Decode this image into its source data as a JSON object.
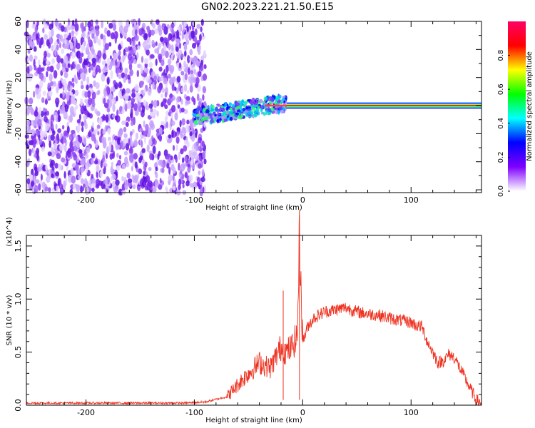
{
  "title": "GN02.2023.221.21.50.E15",
  "chart_data": [
    {
      "type": "heatmap",
      "xlabel": "Height of straight line (km)",
      "ylabel": "Frequency (Hz)",
      "xlim": [
        -255,
        165
      ],
      "ylim": [
        -62,
        60
      ],
      "x_ticks": [
        -200,
        -100,
        0,
        100
      ],
      "y_ticks": [
        -60,
        -40,
        -20,
        0,
        20,
        40,
        60
      ],
      "colorbar": {
        "label": "Normalized spectral amplitude",
        "range": [
          0.0,
          1.0
        ],
        "ticks": [
          "0.0",
          "0.2",
          "0.4",
          "0.6",
          "0.8"
        ],
        "colormap": [
          "#ffffff",
          "#7f00ff",
          "#0000ff",
          "#00ffff",
          "#00ff00",
          "#ffff00",
          "#ff0000",
          "#ff0066"
        ]
      },
      "regions": [
        {
          "x": [
            -255,
            -90
          ],
          "freq": [
            -62,
            60
          ],
          "amplitude": "0.05-0.25 noise"
        },
        {
          "x": [
            -100,
            -15
          ],
          "freq_center": "-8 to 3",
          "amplitude": "0.2-0.6 rising trend"
        },
        {
          "x": [
            -15,
            165
          ],
          "freq_center": 0,
          "amplitude": "0.9 narrow line"
        }
      ]
    },
    {
      "type": "line",
      "xlabel": "Height of straight line (km)",
      "ylabel": "SNR (10 * v/v)",
      "y_multiplier": "(x10^4)",
      "xlim": [
        -255,
        165
      ],
      "ylim": [
        0.0,
        1.6
      ],
      "x_ticks": [
        -200,
        -100,
        0,
        100
      ],
      "y_ticks": [
        "0.0",
        "0.5",
        "1.0",
        "1.5"
      ],
      "color": "#ee3322",
      "series": [
        {
          "x": [
            -255,
            -200,
            -150,
            -110,
            -90,
            -70,
            -55,
            -45,
            -40,
            -30,
            -25,
            -20,
            -15,
            -10,
            -5,
            -3,
            0,
            5,
            10,
            20,
            30,
            40,
            50,
            60,
            70,
            80,
            90,
            100,
            105,
            110,
            115,
            120,
            125,
            130,
            135,
            140,
            145,
            150,
            155,
            160,
            165
          ],
          "values": [
            0.02,
            0.02,
            0.02,
            0.02,
            0.03,
            0.08,
            0.25,
            0.35,
            0.4,
            0.35,
            0.45,
            0.55,
            0.5,
            0.55,
            0.65,
            1.6,
            0.6,
            0.75,
            0.82,
            0.88,
            0.9,
            0.92,
            0.88,
            0.86,
            0.85,
            0.82,
            0.8,
            0.78,
            0.75,
            0.74,
            0.6,
            0.5,
            0.4,
            0.42,
            0.48,
            0.45,
            0.35,
            0.25,
            0.15,
            0.05,
            0.02
          ]
        }
      ],
      "spikes": [
        {
          "x": -3,
          "value": 1.6
        },
        {
          "x": -18,
          "value": 1.08
        }
      ]
    }
  ]
}
